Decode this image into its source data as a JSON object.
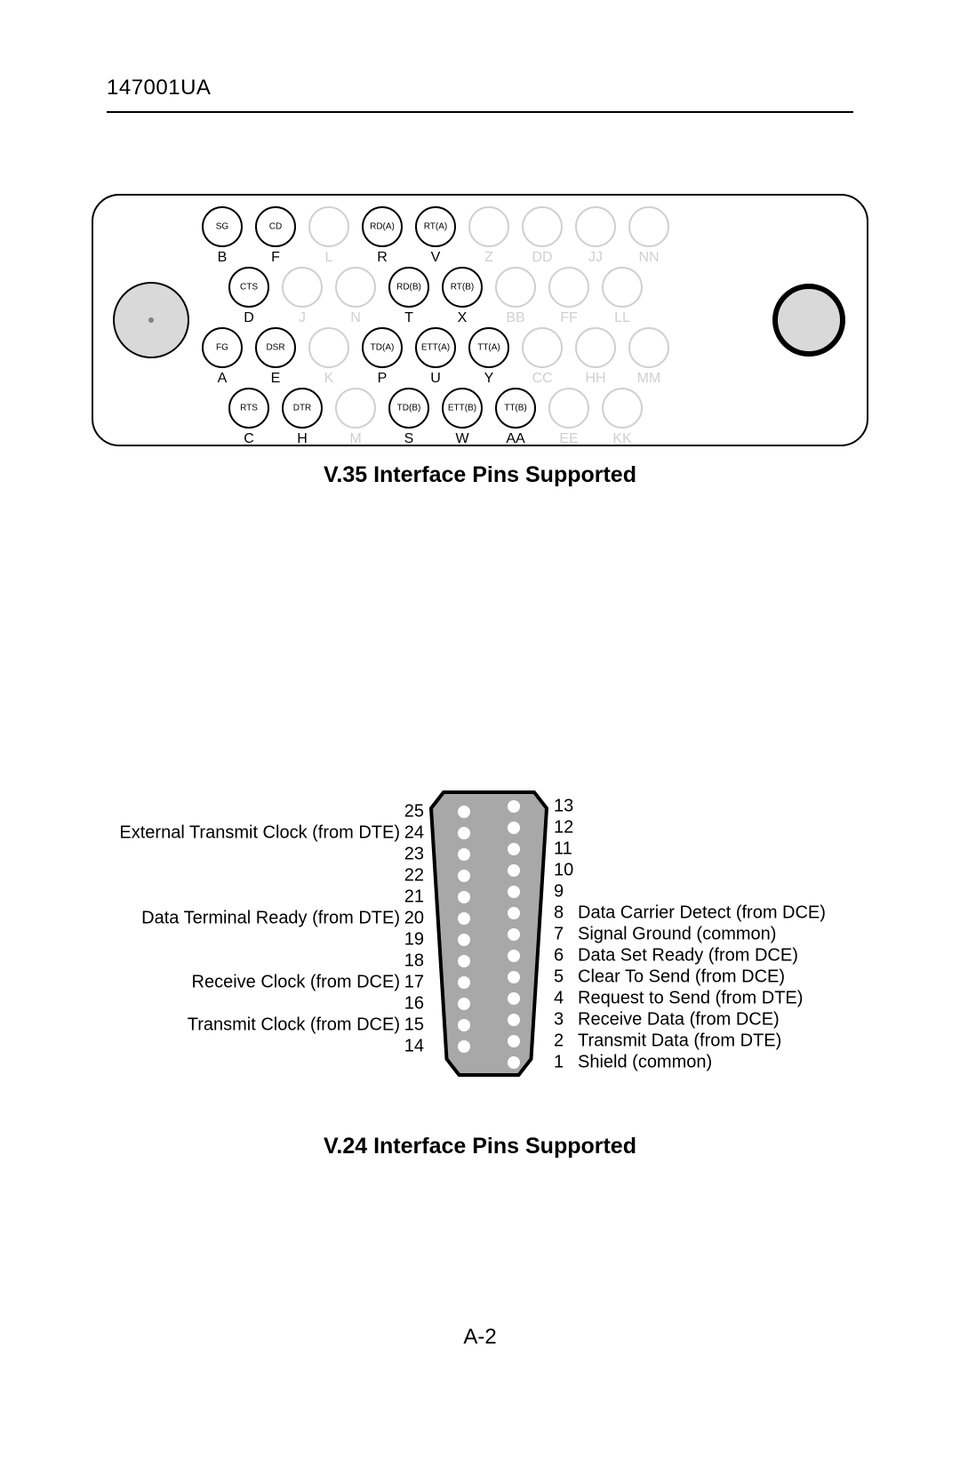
{
  "header_code": "147001UA",
  "page_number": "A-2",
  "caption_v35": "V.35 Interface Pins Supported",
  "caption_v24": "V.24 Interface Pins Supported",
  "v35": {
    "outline_stroke": "#000000",
    "outline_width": 2,
    "bg": "#ffffff",
    "screw_fill": "#d9d9d9",
    "screw_stroke": "#000000",
    "active_stroke": "#000000",
    "inactive_stroke": "#d0d0d0",
    "inactive_text": "#d0d0d0",
    "pin_radius": 22,
    "small_font": 10,
    "label_font": 16,
    "row1": {
      "pins": [
        {
          "sig": "SG",
          "lab": "B",
          "active": true
        },
        {
          "sig": "CD",
          "lab": "F",
          "active": true
        },
        {
          "sig": "",
          "lab": "L",
          "active": false
        },
        {
          "sig": "RD(A)",
          "lab": "R",
          "active": true
        },
        {
          "sig": "RT(A)",
          "lab": "V",
          "active": true
        },
        {
          "sig": "",
          "lab": "Z",
          "active": false
        },
        {
          "sig": "",
          "lab": "DD",
          "active": false
        },
        {
          "sig": "",
          "lab": "JJ",
          "active": false
        },
        {
          "sig": "",
          "lab": "NN",
          "active": false
        }
      ]
    },
    "row2": {
      "pins": [
        {
          "sig": "CTS",
          "lab": "D",
          "active": true
        },
        {
          "sig": "",
          "lab": "J",
          "active": false
        },
        {
          "sig": "",
          "lab": "N",
          "active": false
        },
        {
          "sig": "RD(B)",
          "lab": "T",
          "active": true
        },
        {
          "sig": "RT(B)",
          "lab": "X",
          "active": true
        },
        {
          "sig": "",
          "lab": "BB",
          "active": false
        },
        {
          "sig": "",
          "lab": "FF",
          "active": false
        },
        {
          "sig": "",
          "lab": "LL",
          "active": false
        }
      ]
    },
    "row3": {
      "pins": [
        {
          "sig": "FG",
          "lab": "A",
          "active": true
        },
        {
          "sig": "DSR",
          "lab": "E",
          "active": true
        },
        {
          "sig": "",
          "lab": "K",
          "active": false
        },
        {
          "sig": "TD(A)",
          "lab": "P",
          "active": true
        },
        {
          "sig": "ETT(A)",
          "lab": "U",
          "active": true
        },
        {
          "sig": "TT(A)",
          "lab": "Y",
          "active": true
        },
        {
          "sig": "",
          "lab": "CC",
          "active": false
        },
        {
          "sig": "",
          "lab": "HH",
          "active": false
        },
        {
          "sig": "",
          "lab": "MM",
          "active": false
        }
      ]
    },
    "row4": {
      "pins": [
        {
          "sig": "RTS",
          "lab": "C",
          "active": true
        },
        {
          "sig": "DTR",
          "lab": "H",
          "active": true
        },
        {
          "sig": "",
          "lab": "M",
          "active": false
        },
        {
          "sig": "TD(B)",
          "lab": "S",
          "active": true
        },
        {
          "sig": "ETT(B)",
          "lab": "W",
          "active": true
        },
        {
          "sig": "TT(B)",
          "lab": "AA",
          "active": true
        },
        {
          "sig": "",
          "lab": "EE",
          "active": false
        },
        {
          "sig": "",
          "lab": "KK",
          "active": false
        }
      ]
    }
  },
  "v24": {
    "body_fill": "#a8a8a8",
    "body_stroke": "#000000",
    "body_stroke_width": 4,
    "pin_fill": "#ffffff",
    "pin_radius": 7,
    "label_font": 20,
    "left_labels": {
      "24": "External Transmit Clock (from DTE)",
      "20": "Data Terminal Ready (from DTE)",
      "17": "Receive Clock (from DCE)",
      "15": "Transmit Clock (from DCE)"
    },
    "right_labels": {
      "8": "Data Carrier Detect (from DCE)",
      "7": "Signal Ground (common)",
      "6": "Data Set Ready (from DCE)",
      "5": "Clear To Send (from DCE)",
      "4": "Request to Send (from DTE)",
      "3": "Receive Data (from DCE)",
      "2": "Transmit Data (from DTE)",
      "1": "Shield (common)"
    }
  }
}
